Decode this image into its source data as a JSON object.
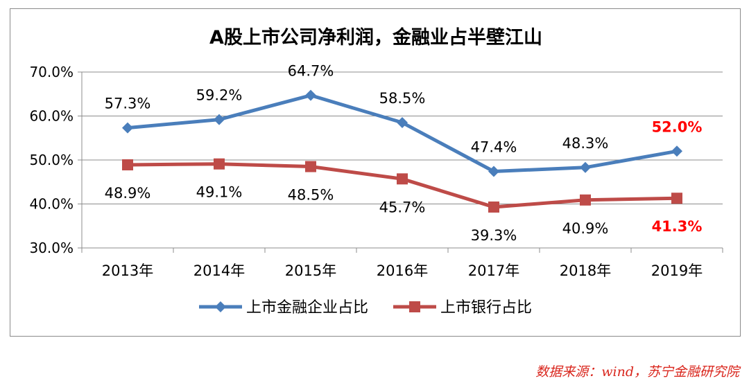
{
  "chart_data": {
    "type": "line",
    "title": "A股上市公司净利润，金融业占半壁江山",
    "categories": [
      "2013年",
      "2014年",
      "2015年",
      "2016年",
      "2017年",
      "2018年",
      "2019年"
    ],
    "ylim": [
      30,
      70
    ],
    "yticks": [
      "30.0%",
      "40.0%",
      "50.0%",
      "60.0%",
      "70.0%"
    ],
    "grid": true,
    "legend_position": "bottom",
    "series": [
      {
        "name": "上市金融企业占比",
        "color": "#4a7ebb",
        "marker": "diamond",
        "values": [
          57.3,
          59.2,
          64.7,
          58.5,
          47.4,
          48.3,
          52.0
        ],
        "labels": [
          "57.3%",
          "59.2%",
          "64.7%",
          "58.5%",
          "47.4%",
          "48.3%",
          "52.0%"
        ],
        "label_side": "above",
        "highlight_last": true
      },
      {
        "name": "上市银行占比",
        "color": "#be4b48",
        "marker": "square",
        "values": [
          48.9,
          49.1,
          48.5,
          45.7,
          39.3,
          40.9,
          41.3
        ],
        "labels": [
          "48.9%",
          "49.1%",
          "48.5%",
          "45.7%",
          "39.3%",
          "40.9%",
          "41.3%"
        ],
        "label_side": "below",
        "highlight_last": true
      }
    ],
    "highlight_color": "#ff0000"
  },
  "source": "数据来源：wind，苏宁金融研究院"
}
